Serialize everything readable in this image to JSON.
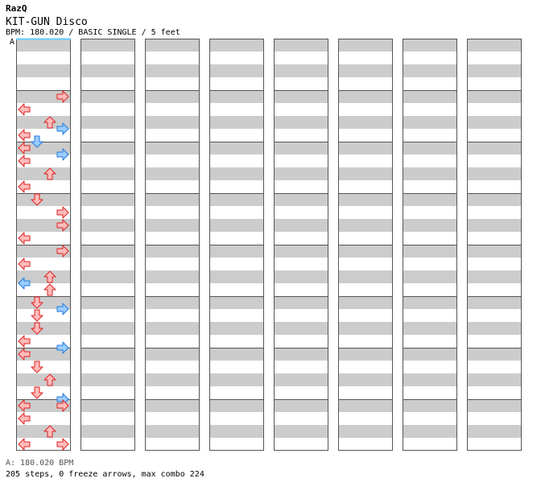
{
  "header": {
    "artist": "RazQ",
    "title": "KIT-GUN Disco",
    "info": "BPM: 180.020 / BASIC SINGLE / 5 feet",
    "bpm_marker": "A"
  },
  "footer": {
    "bpm_line": "A: 180.020 BPM",
    "stats_line": "205 steps, 0 freeze arrows, max combo 224"
  },
  "colors": {
    "stripe": "#cccccc",
    "background": "#ffffff",
    "border": "#555555",
    "quarter_fill": "#ffbbbb",
    "quarter_stroke": "#dd2222",
    "eighth_fill": "#99ccff",
    "eighth_stroke": "#2277dd",
    "sixteenth_fill": "#ffbbff",
    "sixteenth_stroke": "#cc33cc",
    "bpm_line": "#66ccff"
  },
  "chart_data": {
    "type": "step-chart",
    "lanes": [
      "left",
      "down",
      "up",
      "right"
    ],
    "columns": 8,
    "measures_per_column": 8,
    "total_measures": 62,
    "notes": [
      {
        "measure": 0,
        "beat": 0.0,
        "lanes": []
      },
      {
        "measure": 1,
        "beat": 0.0,
        "lanes": [
          "right"
        ],
        "type": "quarter"
      },
      {
        "measure": 1,
        "beat": 0.5,
        "lanes": []
      },
      {
        "measure": 1,
        "beat": 1.0,
        "lanes": [
          "left"
        ],
        "type": "quarter"
      },
      {
        "measure": 1,
        "beat": 2.0,
        "lanes": [
          "up"
        ],
        "type": "quarter"
      },
      {
        "measure": 1,
        "beat": 2.5,
        "lanes": [
          "right"
        ],
        "type": "eighth"
      },
      {
        "measure": 1,
        "beat": 3.0,
        "lanes": [
          "left"
        ],
        "type": "quarter"
      },
      {
        "measure": 1,
        "beat": 3.5,
        "lanes": [
          "down"
        ],
        "type": "eighth"
      },
      {
        "measure": 2,
        "beat": 0.0,
        "lanes": [
          "left"
        ],
        "type": "quarter"
      },
      {
        "measure": 2,
        "beat": 0.5,
        "lanes": [
          "right"
        ],
        "type": "eighth"
      },
      {
        "measure": 2,
        "beat": 1.0,
        "lanes": [
          "left"
        ],
        "type": "quarter"
      },
      {
        "measure": 2,
        "beat": 2.0,
        "lanes": [
          "up"
        ],
        "type": "quarter"
      },
      {
        "measure": 2,
        "beat": 3.0,
        "lanes": [
          "left"
        ],
        "type": "quarter"
      },
      {
        "measure": 3,
        "beat": 0.0,
        "lanes": [
          "down"
        ],
        "type": "quarter"
      },
      {
        "measure": 3,
        "beat": 1.0,
        "lanes": [
          "right"
        ],
        "type": "quarter"
      },
      {
        "measure": 3,
        "beat": 2.0,
        "lanes": [
          "right"
        ],
        "type": "quarter"
      },
      {
        "measure": 3,
        "beat": 3.0,
        "lanes": [
          "left"
        ],
        "type": "quarter"
      },
      {
        "measure": 4,
        "beat": 0.0,
        "lanes": [
          "right"
        ],
        "type": "quarter"
      },
      {
        "measure": 4,
        "beat": 1.0,
        "lanes": [
          "left"
        ],
        "type": "quarter"
      },
      {
        "measure": 4,
        "beat": 2.0,
        "lanes": [
          "up"
        ],
        "type": "quarter"
      },
      {
        "measure": 4,
        "beat": 2.5,
        "lanes": [
          "left"
        ],
        "type": "eighth"
      },
      {
        "measure": 4,
        "beat": 3.0,
        "lanes": [
          "up"
        ],
        "type": "quarter"
      },
      {
        "measure": 5,
        "beat": 0.0,
        "lanes": [
          "down"
        ],
        "type": "quarter"
      },
      {
        "measure": 5,
        "beat": 0.5,
        "lanes": [
          "right"
        ],
        "type": "eighth"
      },
      {
        "measure": 5,
        "beat": 1.0,
        "lanes": [
          "down"
        ],
        "type": "quarter"
      },
      {
        "measure": 5,
        "beat": 2.0,
        "lanes": [
          "down"
        ],
        "type": "quarter"
      },
      {
        "measure": 5,
        "beat": 3.0,
        "lanes": [
          "left"
        ],
        "type": "quarter"
      },
      {
        "measure": 5,
        "beat": 3.5,
        "lanes": [
          "right"
        ],
        "type": "eighth"
      },
      {
        "measure": 6,
        "beat": 0.0,
        "lanes": [
          "left"
        ],
        "type": "quarter"
      },
      {
        "measure": 6,
        "beat": 1.0,
        "lanes": [
          "down"
        ],
        "type": "quarter"
      },
      {
        "measure": 6,
        "beat": 2.0,
        "lanes": [
          "up"
        ],
        "type": "quarter"
      },
      {
        "measure": 6,
        "beat": 3.0,
        "lanes": [
          "down"
        ],
        "type": "quarter"
      },
      {
        "measure": 6,
        "beat": 3.5,
        "lanes": [
          "right"
        ],
        "type": "eighth"
      },
      {
        "measure": 7,
        "beat": 0.0,
        "lanes": [
          "left",
          "right"
        ],
        "type": "quarter"
      },
      {
        "measure": 7,
        "beat": 1.0,
        "lanes": [
          "left"
        ],
        "type": "quarter"
      },
      {
        "measure": 7,
        "beat": 2.0,
        "lanes": [
          "up"
        ],
        "type": "quarter"
      },
      {
        "measure": 7,
        "beat": 3.0,
        "lanes": [
          "left",
          "right"
        ],
        "type": "quarter"
      }
    ]
  }
}
